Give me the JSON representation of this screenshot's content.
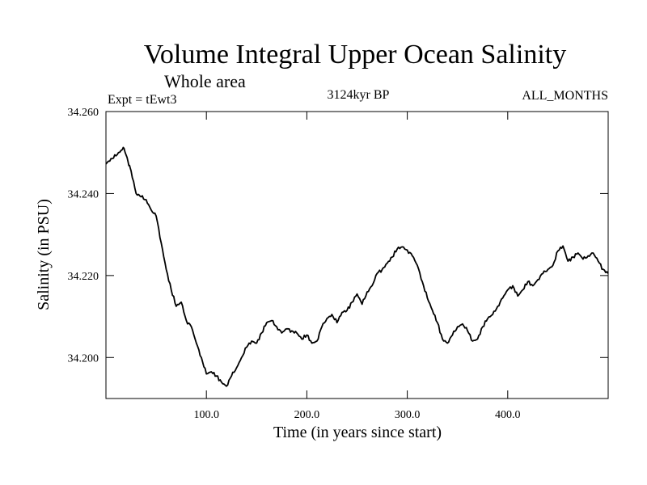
{
  "chart_data": {
    "type": "line",
    "title": "Volume Integral Upper Ocean Salinity",
    "subtitle": "Whole area",
    "experiment": "Expt = tEwt3",
    "period": "3124kyr BP",
    "months": "ALL_MONTHS",
    "xlabel": "Time (in years since start)",
    "ylabel": "Salinity (in PSU)",
    "xlim": [
      0,
      500
    ],
    "ylim": [
      34.19,
      34.26
    ],
    "x_ticks": [
      100,
      200,
      300,
      400
    ],
    "x_tick_labels": [
      "100.0",
      "200.0",
      "300.0",
      "400.0"
    ],
    "y_ticks": [
      34.2,
      34.22,
      34.24,
      34.26
    ],
    "y_tick_labels": [
      "34.200",
      "34.220",
      "34.240",
      "34.260"
    ],
    "grid": false,
    "series": [
      {
        "name": "Salinity",
        "x": [
          0,
          5,
          10,
          15,
          18,
          22,
          25,
          30,
          35,
          40,
          45,
          50,
          55,
          60,
          65,
          70,
          75,
          80,
          85,
          90,
          95,
          100,
          105,
          110,
          115,
          120,
          125,
          130,
          135,
          140,
          145,
          150,
          155,
          160,
          165,
          170,
          175,
          180,
          185,
          190,
          195,
          200,
          205,
          210,
          215,
          220,
          225,
          230,
          235,
          240,
          245,
          250,
          255,
          260,
          265,
          270,
          275,
          280,
          285,
          290,
          295,
          300,
          305,
          310,
          315,
          320,
          325,
          330,
          335,
          340,
          345,
          350,
          355,
          360,
          365,
          370,
          375,
          380,
          385,
          390,
          395,
          400,
          405,
          410,
          415,
          420,
          425,
          430,
          435,
          440,
          445,
          450,
          455,
          460,
          465,
          470,
          475,
          480,
          485,
          490,
          495,
          500
        ],
        "values": [
          34.2472,
          34.2485,
          34.2492,
          34.2505,
          34.251,
          34.2478,
          34.2455,
          34.24,
          34.2392,
          34.2385,
          34.236,
          34.2345,
          34.228,
          34.2215,
          34.2165,
          34.2125,
          34.2135,
          34.209,
          34.2075,
          34.2035,
          34.2,
          34.196,
          34.1965,
          34.1955,
          34.194,
          34.193,
          34.1955,
          34.1975,
          34.2,
          34.2025,
          34.204,
          34.2035,
          34.206,
          34.2085,
          34.209,
          34.2075,
          34.206,
          34.207,
          34.2065,
          34.206,
          34.2045,
          34.2055,
          34.2035,
          34.204,
          34.2075,
          34.2095,
          34.2105,
          34.2085,
          34.211,
          34.2115,
          34.2135,
          34.2155,
          34.213,
          34.216,
          34.2175,
          34.2205,
          34.2215,
          34.223,
          34.2245,
          34.2265,
          34.227,
          34.2262,
          34.2248,
          34.2225,
          34.2185,
          34.2145,
          34.2115,
          34.2085,
          34.2045,
          34.2035,
          34.2055,
          34.2075,
          34.2082,
          34.2065,
          34.204,
          34.2045,
          34.2075,
          34.2095,
          34.2105,
          34.2125,
          34.2145,
          34.2165,
          34.2175,
          34.215,
          34.2165,
          34.2185,
          34.2175,
          34.219,
          34.2205,
          34.2215,
          34.2225,
          34.226,
          34.2272,
          34.2235,
          34.2245,
          34.2255,
          34.224,
          34.2248,
          34.2255,
          34.2235,
          34.2215,
          34.2205
        ]
      }
    ]
  }
}
